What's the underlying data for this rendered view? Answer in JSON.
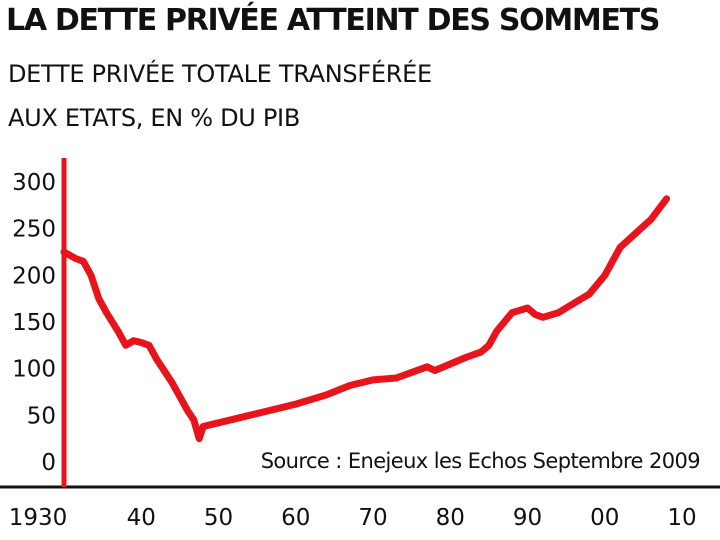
{
  "chart_data": {
    "type": "line",
    "title": "LA DETTE PRIVÉE ATTEINT DES SOMMETS",
    "subtitle_lines": [
      "DETTE PRIVÉE TOTALE TRANSFÉRÉE",
      "AUX ETATS, EN % DU PIB"
    ],
    "source": "Source : Enejeux les Echos Septembre 2009",
    "xlim": [
      1930,
      2010
    ],
    "ylim": [
      0,
      300
    ],
    "x_ticks": [
      1930,
      1940,
      1950,
      1960,
      1970,
      1980,
      1990,
      2000,
      2010
    ],
    "x_tick_labels": [
      "1930",
      "40",
      "50",
      "60",
      "70",
      "80",
      "90",
      "00",
      "10"
    ],
    "y_ticks": [
      0,
      50,
      100,
      150,
      200,
      250,
      300
    ],
    "y_tick_labels": [
      "0",
      "50",
      "100",
      "150",
      "200",
      "250",
      "300"
    ],
    "grid": false,
    "colors": {
      "line": "#e8141b",
      "axis": "#e8141b",
      "baseline": "#111111"
    },
    "series": [
      {
        "x": [
          1930,
          1931.5,
          1932.5,
          1933.5,
          1934.5,
          1935.5,
          1937,
          1938,
          1939,
          1940,
          1941,
          1942,
          1944,
          1946,
          1946.8,
          1947.5,
          1948,
          1950,
          1955,
          1960,
          1964,
          1967,
          1970,
          1973,
          1975,
          1977,
          1978,
          1980,
          1982,
          1984,
          1985,
          1986,
          1988,
          1990,
          1991,
          1992,
          1994,
          1996,
          1998,
          2000,
          2002,
          2004,
          2006,
          2008
        ],
        "y": [
          225,
          218,
          215,
          200,
          175,
          160,
          140,
          125,
          130,
          128,
          125,
          110,
          85,
          55,
          45,
          25,
          38,
          42,
          52,
          62,
          72,
          82,
          88,
          90,
          96,
          102,
          98,
          105,
          112,
          118,
          125,
          140,
          160,
          165,
          158,
          155,
          160,
          170,
          180,
          200,
          230,
          245,
          260,
          282
        ]
      }
    ]
  }
}
